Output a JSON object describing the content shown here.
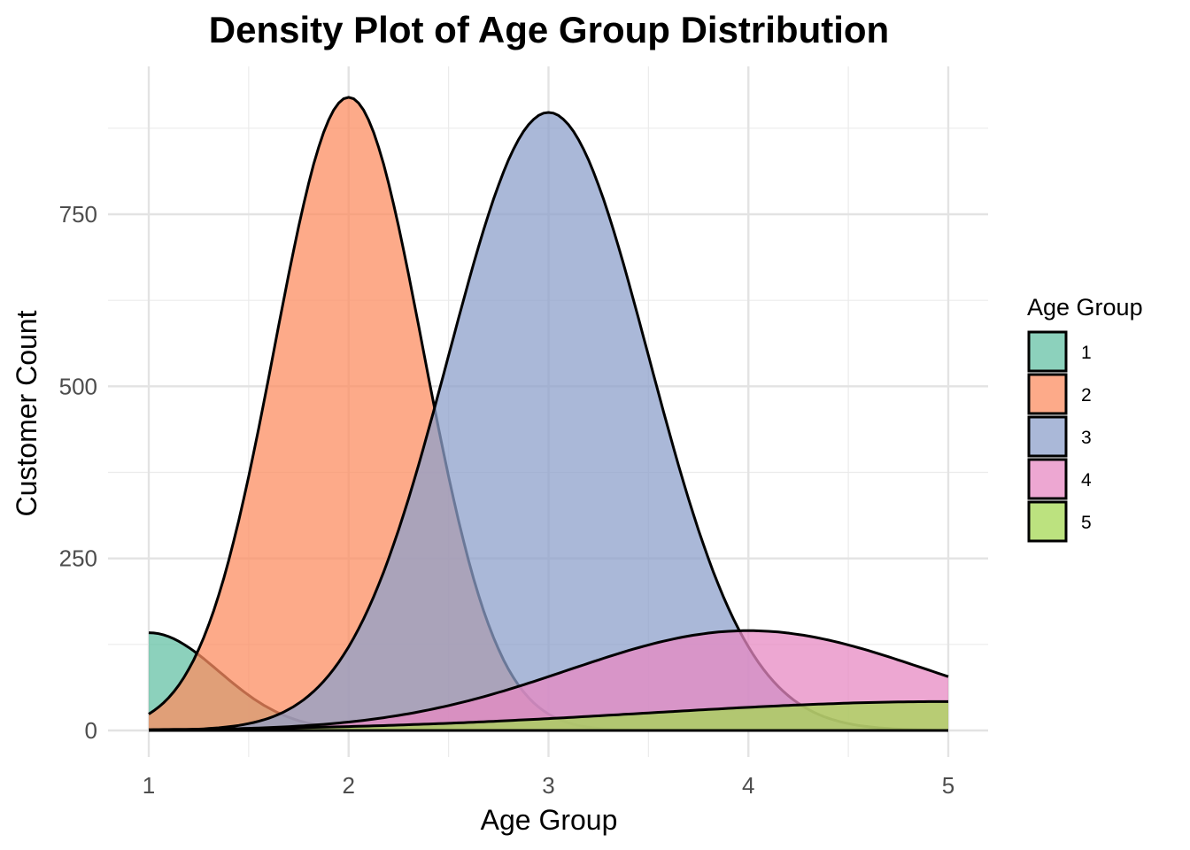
{
  "chart_data": {
    "type": "area",
    "title": "Density Plot of Age Group Distribution",
    "xlabel": "Age Group",
    "ylabel": "Customer Count",
    "xlim": [
      1,
      5
    ],
    "ylim": [
      0,
      920
    ],
    "x_ticks": [
      "1",
      "2",
      "3",
      "4",
      "5"
    ],
    "y_ticks": [
      "0",
      "250",
      "500",
      "750"
    ],
    "grid": true,
    "legend": {
      "title": "Age Group",
      "position": "right"
    },
    "series": [
      {
        "name": "1",
        "color": "#66C2A5",
        "mean": 1.0,
        "sd": 0.35,
        "peak": 142
      },
      {
        "name": "2",
        "color": "#FC8D62",
        "mean": 2.0,
        "sd": 0.37,
        "peak": 920
      },
      {
        "name": "3",
        "color": "#8DA0CB",
        "mean": 3.0,
        "sd": 0.5,
        "peak": 898
      },
      {
        "name": "4",
        "color": "#E78AC3",
        "mean": 4.0,
        "sd": 0.9,
        "peak": 145
      },
      {
        "name": "5",
        "color": "#A6D854",
        "mean": 5.0,
        "sd": 1.5,
        "peak": 42
      }
    ]
  }
}
